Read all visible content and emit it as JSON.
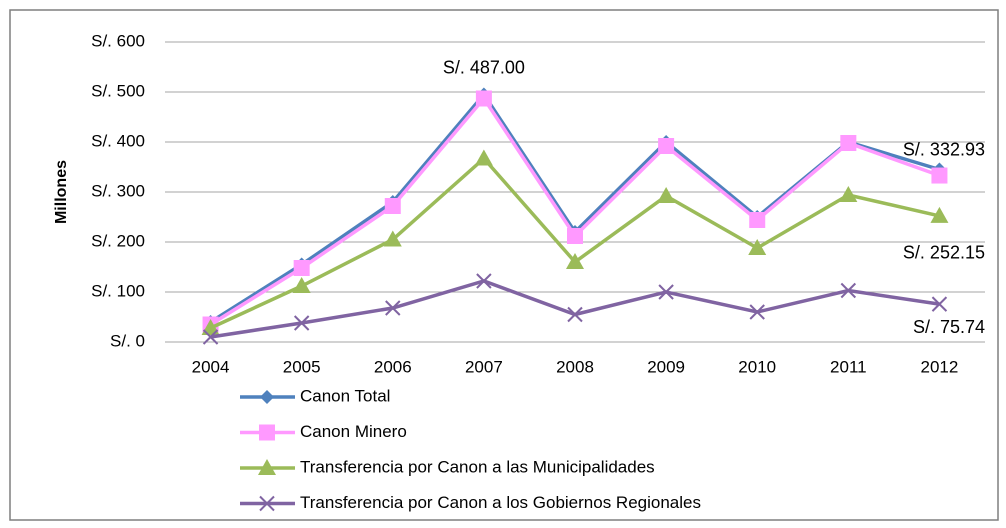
{
  "chart_data": {
    "type": "line",
    "y_label": "Millones",
    "categories": [
      "2004",
      "2005",
      "2006",
      "2007",
      "2008",
      "2009",
      "2010",
      "2011",
      "2012"
    ],
    "series": [
      {
        "name": "Canon Total",
        "color": "#4f81bd",
        "marker": "diamond",
        "values": [
          40,
          155,
          280,
          495,
          220,
          400,
          250,
          400,
          345
        ]
      },
      {
        "name": "Canon Minero",
        "color": "#ff99ff",
        "marker": "square",
        "values": [
          35,
          148,
          272,
          487,
          212,
          392,
          244,
          398,
          332.93
        ],
        "value_labels": [
          null,
          null,
          null,
          "S/. 487.00",
          null,
          null,
          null,
          null,
          "S/. 332.93"
        ]
      },
      {
        "name": "Transferencia por Canon a las Municipalidades",
        "color": "#9bbb59",
        "marker": "triangle",
        "values": [
          28,
          112,
          205,
          367,
          160,
          292,
          188,
          294,
          252.15
        ],
        "value_labels": [
          null,
          null,
          null,
          null,
          null,
          null,
          null,
          null,
          "S/. 252.15"
        ]
      },
      {
        "name": "Transferencia por Canon a los Gobiernos Regionales",
        "color": "#8064a2",
        "marker": "x",
        "values": [
          10,
          38,
          68,
          122,
          55,
          100,
          60,
          103,
          75.74
        ],
        "value_labels": [
          null,
          null,
          null,
          null,
          null,
          null,
          null,
          null,
          "S/. 75.74"
        ]
      }
    ],
    "ylim": [
      0,
      600
    ],
    "yticks": [
      {
        "value": 0,
        "label": "S/. 0"
      },
      {
        "value": 100,
        "label": "S/. 100"
      },
      {
        "value": 200,
        "label": "S/. 200"
      },
      {
        "value": 300,
        "label": "S/. 300"
      },
      {
        "value": 400,
        "label": "S/. 400"
      },
      {
        "value": 500,
        "label": "S/. 500"
      },
      {
        "value": 600,
        "label": "S/. 600"
      }
    ],
    "grid": true,
    "legend": "bottom"
  }
}
